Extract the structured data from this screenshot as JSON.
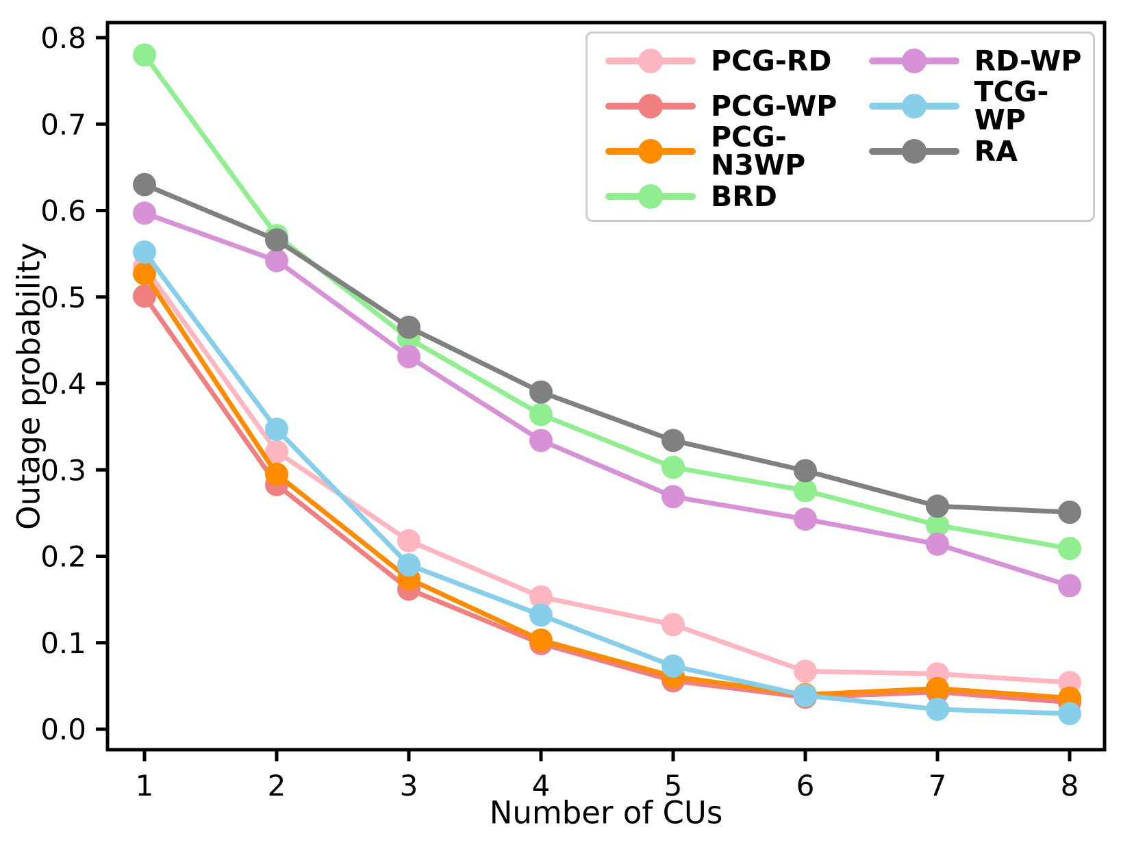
{
  "figure": {
    "kind": "matplotlib-style line chart",
    "background": "#ffffff",
    "spine_color": "#000000",
    "legend_border_color": "#cccccc"
  },
  "chart_data": {
    "type": "line",
    "x": [
      1,
      2,
      3,
      4,
      5,
      6,
      7,
      8
    ],
    "xlabel": "Number of CUs",
    "ylabel": "Outage probability",
    "xticks": [
      1,
      2,
      3,
      4,
      5,
      6,
      7,
      8
    ],
    "yticks": [
      0.0,
      0.1,
      0.2,
      0.3,
      0.4,
      0.5,
      0.6,
      0.7,
      0.8
    ],
    "xlim": [
      0.72,
      8.27
    ],
    "ylim": [
      -0.024,
      0.817
    ],
    "grid": false,
    "legend_position": "upper right",
    "legend_columns": 2,
    "legend_rows_per_column": 4,
    "marker": "circle",
    "series": [
      {
        "name": "PCG-RD",
        "color": "#FFB6C1",
        "values": [
          0.535,
          0.321,
          0.218,
          0.153,
          0.121,
          0.067,
          0.064,
          0.054
        ]
      },
      {
        "name": "PCG-WP",
        "color": "#F08080",
        "values": [
          0.501,
          0.283,
          0.162,
          0.099,
          0.056,
          0.037,
          0.043,
          0.031
        ]
      },
      {
        "name": "PCG-N3WP",
        "color": "#FF8C00",
        "values": [
          0.527,
          0.295,
          0.174,
          0.103,
          0.061,
          0.04,
          0.047,
          0.036
        ]
      },
      {
        "name": "BRD",
        "color": "#90EE90",
        "values": [
          0.78,
          0.571,
          0.452,
          0.364,
          0.303,
          0.276,
          0.236,
          0.209
        ]
      },
      {
        "name": "RD-WP",
        "color": "#D792D7",
        "values": [
          0.597,
          0.542,
          0.431,
          0.334,
          0.269,
          0.243,
          0.214,
          0.166
        ]
      },
      {
        "name": "TCG-WP",
        "color": "#87CEEB",
        "values": [
          0.552,
          0.347,
          0.19,
          0.132,
          0.073,
          0.039,
          0.023,
          0.018
        ]
      },
      {
        "name": "RA",
        "color": "#808080",
        "values": [
          0.63,
          0.566,
          0.465,
          0.39,
          0.334,
          0.299,
          0.258,
          0.251
        ]
      }
    ]
  }
}
